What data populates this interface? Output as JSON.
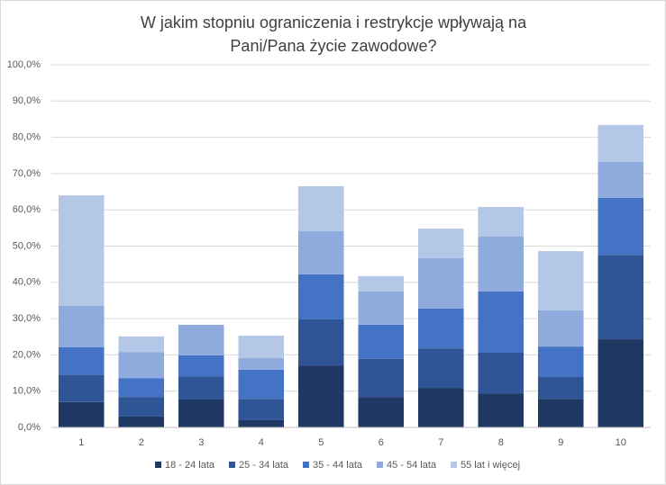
{
  "chart_data": {
    "type": "bar",
    "stacked": true,
    "title": "W jakim stopniu ograniczenia i restrykcje wpływają na Pani/Pana życie zawodowe?",
    "categories": [
      "1",
      "2",
      "3",
      "4",
      "5",
      "6",
      "7",
      "8",
      "9",
      "10"
    ],
    "series": [
      {
        "name": "18 - 24 lata",
        "color": "#1f3864",
        "values": [
          7.0,
          3.0,
          7.7,
          2.0,
          17.1,
          8.4,
          10.9,
          9.4,
          7.9,
          24.3
        ]
      },
      {
        "name": "25 - 34 lata",
        "color": "#2f5597",
        "values": [
          7.4,
          5.4,
          6.4,
          5.9,
          12.7,
          10.5,
          10.9,
          11.2,
          6.0,
          23.3
        ]
      },
      {
        "name": "35 - 44 lata",
        "color": "#4472c4",
        "values": [
          7.7,
          5.2,
          5.8,
          8.0,
          12.4,
          9.4,
          11.0,
          16.9,
          8.4,
          15.7
        ]
      },
      {
        "name": "45 - 54 lata",
        "color": "#8faadc",
        "values": [
          11.4,
          7.2,
          8.4,
          3.2,
          11.9,
          9.2,
          13.9,
          15.1,
          10.0,
          9.9
        ]
      },
      {
        "name": "55 lat i więcej",
        "color": "#b4c7e7",
        "values": [
          30.5,
          4.3,
          0,
          6.2,
          12.4,
          4.2,
          8.1,
          8.2,
          16.3,
          10.2
        ]
      }
    ],
    "ylim": [
      0,
      100
    ],
    "yticks": [
      {
        "value": 0,
        "label": "0,0%"
      },
      {
        "value": 10,
        "label": "10,0%"
      },
      {
        "value": 20,
        "label": "20,0%"
      },
      {
        "value": 30,
        "label": "30,0%"
      },
      {
        "value": 40,
        "label": "40,0%"
      },
      {
        "value": 50,
        "label": "50,0%"
      },
      {
        "value": 60,
        "label": "60,0%"
      },
      {
        "value": 70,
        "label": "70,0%"
      },
      {
        "value": 80,
        "label": "80,0%"
      },
      {
        "value": 90,
        "label": "90,0%"
      },
      {
        "value": 100,
        "label": "100,0%"
      }
    ],
    "grid": true,
    "legend": "bottom"
  }
}
